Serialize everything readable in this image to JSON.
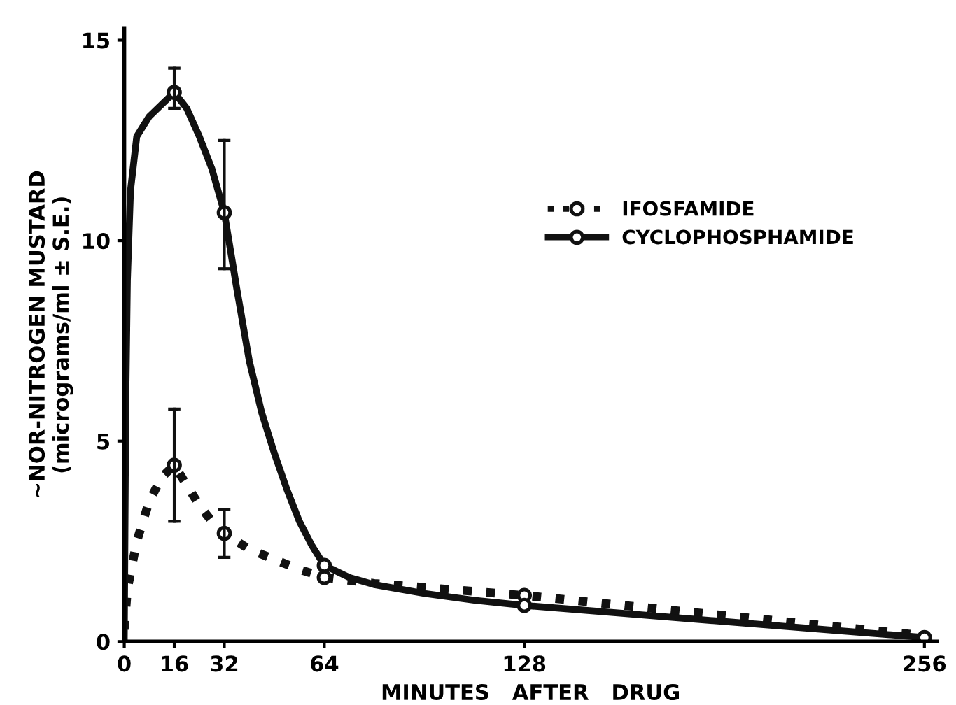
{
  "chart_data": {
    "type": "line",
    "xlabel": "MINUTES   AFTER   DRUG",
    "ylabel": "∼NOR-NITROGEN MUSTARD\n(micrograms/ml ± S.E.)",
    "xlim": [
      0,
      260
    ],
    "ylim": [
      0,
      15.3
    ],
    "xticks": [
      0,
      16,
      32,
      64,
      128,
      256
    ],
    "yticks": [
      0,
      5,
      10,
      15
    ],
    "series": [
      {
        "name": "IFOSFAMIDE",
        "color": "#111111",
        "line_style": "dotted",
        "marker": "none",
        "x": [
          0,
          1,
          2,
          4,
          8,
          12,
          16,
          20,
          24,
          28,
          32,
          40,
          48,
          56,
          64,
          80,
          96,
          112,
          128,
          160,
          192,
          224,
          256
        ],
        "values": [
          0.3,
          1.3,
          1.7,
          2.5,
          3.5,
          4.1,
          4.4,
          3.9,
          3.4,
          3.0,
          2.7,
          2.3,
          2.05,
          1.8,
          1.6,
          1.45,
          1.35,
          1.25,
          1.15,
          0.9,
          0.65,
          0.4,
          0.15
        ]
      },
      {
        "name": "CYCLOPHOSPHAMIDE",
        "color": "#111111",
        "line_style": "solid",
        "marker": "none",
        "x": [
          0,
          0.5,
          1,
          2,
          4,
          8,
          12,
          16,
          20,
          24,
          28,
          32,
          36,
          40,
          44,
          48,
          52,
          56,
          60,
          64,
          72,
          80,
          96,
          112,
          128,
          160,
          192,
          224,
          256
        ],
        "values": [
          0,
          6,
          9,
          11.25,
          12.6,
          13.1,
          13.4,
          13.7,
          13.3,
          12.6,
          11.8,
          10.7,
          8.8,
          7.0,
          5.7,
          4.7,
          3.8,
          3.0,
          2.4,
          1.9,
          1.6,
          1.42,
          1.2,
          1.03,
          0.9,
          0.7,
          0.5,
          0.3,
          0.1
        ]
      },
      {
        "type": "scatter",
        "color": "#111111",
        "marker": "circle",
        "x": [
          16,
          32,
          64,
          128
        ],
        "values": [
          4.4,
          2.7,
          1.6,
          1.15
        ],
        "errors": [
          [
            3.0,
            5.8
          ],
          [
            2.1,
            3.3
          ],
          null,
          null
        ]
      },
      {
        "type": "scatter",
        "color": "#111111",
        "marker": "circle",
        "x": [
          16,
          32,
          64,
          128,
          256
        ],
        "values": [
          13.7,
          10.7,
          1.9,
          0.9,
          0.1
        ],
        "errors": [
          [
            13.3,
            14.3
          ],
          [
            9.3,
            12.5
          ],
          null,
          null,
          null
        ]
      }
    ],
    "legend": "right",
    "grid": false
  }
}
